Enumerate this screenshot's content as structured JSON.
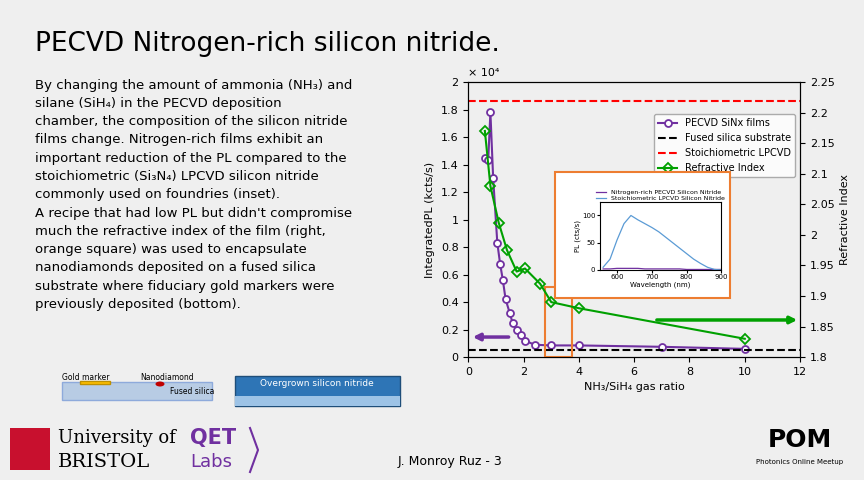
{
  "slide": {
    "title": "PECVD Nitrogen-rich silicon nitride.",
    "paragraphs": [
      [
        "By changing the amount of ammonia (NH₃) and",
        "silane (SiH₄) in the PECVD deposition",
        "chamber, the composition of the silicon nitride",
        "films change. Nitrogen-rich films exhibit an",
        "important reduction of the PL compared to the",
        "stoichiometric (Si₃N₄) LPCVD silicon nitride",
        "commonly used on foundries (inset)."
      ],
      [
        "A recipe that had low PL but didn't compromise",
        "much the refractive index of the film (right,",
        "orange square) was used to encapsulate",
        "nanodiamonds deposited on a fused silica",
        "substrate where fiduciary gold markers were",
        "previously deposited (bottom)."
      ]
    ],
    "diagram": {
      "left": [
        "Gold marker",
        "Nanodiamond",
        "Fused silica"
      ],
      "right": [
        "Overgrown silicon nitride"
      ]
    },
    "footer": {
      "university": [
        "University of",
        "BRISTOL"
      ],
      "lab": [
        "QET",
        "Labs"
      ],
      "author": "J. Monroy Ruz - 3",
      "meetup": [
        "POM",
        "Photonics Online Meetup"
      ]
    }
  },
  "chart_data": [
    {
      "type": "line",
      "x_label": "NH₃/SiH₄ gas ratio",
      "y_label": "IntegratedPL (kcts/s)",
      "y_offset_text": "× 10⁴",
      "y2_label": "Refractive Index",
      "xlim": [
        0,
        12
      ],
      "xticks": [
        0,
        2,
        4,
        6,
        8,
        10,
        12
      ],
      "ylim": [
        0,
        2
      ],
      "yticks": [
        0,
        0.2,
        0.4,
        0.6,
        0.8,
        1,
        1.2,
        1.4,
        1.6,
        1.8,
        2
      ],
      "y2lim": [
        1.8,
        2.25
      ],
      "y2ticks": [
        1.8,
        1.85,
        1.9,
        1.95,
        2,
        2.05,
        2.1,
        2.15,
        2.2,
        2.25
      ],
      "legend": "upper right",
      "series": [
        {
          "name": "PECVD SiNx films",
          "color": "#7030a0",
          "marker": "o",
          "line_style": "solid",
          "x": [
            0.6,
            0.72,
            0.8,
            0.9,
            1.05,
            1.15,
            1.25,
            1.35,
            1.5,
            1.6,
            1.75,
            1.9,
            2.05,
            2.4,
            3,
            4,
            7,
            10
          ],
          "values": [
            1.45,
            1.43,
            1.78,
            1.3,
            0.83,
            0.68,
            0.56,
            0.42,
            0.32,
            0.25,
            0.2,
            0.16,
            0.12,
            0.09,
            0.085,
            0.085,
            0.075,
            0.06
          ]
        },
        {
          "name": "Fused silica substrate",
          "color": "#000000",
          "line_style": "dashed",
          "x": [
            0,
            12
          ],
          "values": [
            0.05,
            0.05
          ]
        },
        {
          "name": "Stoichiometric LPCVD",
          "color": "#ff0000",
          "line_style": "dashed",
          "x": [
            0,
            12
          ],
          "values": [
            1.86,
            1.86
          ]
        },
        {
          "name": "Refractive Index",
          "color": "#00a000",
          "marker": "D",
          "line_style": "solid",
          "axis": "y2",
          "x": [
            0.6,
            0.8,
            1.1,
            1.4,
            1.75,
            2.05,
            2.6,
            3,
            4,
            10
          ],
          "values": [
            2.17,
            2.08,
            2.02,
            1.975,
            1.94,
            1.945,
            1.92,
            1.89,
            1.88,
            1.83
          ]
        }
      ]
    },
    {
      "type": "line",
      "x_label": "Wavelength (nm)",
      "y_label": "PL (cts/s)",
      "xlim": [
        550,
        900
      ],
      "xticks": [
        600,
        700,
        800,
        900
      ],
      "ylim": [
        0,
        125
      ],
      "yticks": [
        0,
        50,
        100
      ],
      "legend": "upper center",
      "x": [
        560,
        580,
        600,
        620,
        640,
        660,
        680,
        700,
        720,
        740,
        760,
        780,
        800,
        820,
        840,
        860,
        880,
        900
      ],
      "series": [
        {
          "name": "Nitrogen-rich PECVD Silicon Nitride",
          "color": "#7030a0",
          "line_style": "solid",
          "values": [
            2,
            2,
            3,
            3,
            3,
            3,
            2,
            2,
            2,
            2,
            2,
            2,
            1,
            1,
            1,
            1,
            1,
            1
          ]
        },
        {
          "name": "Stoichiometric LPCVD Silicon Nitride",
          "color": "#5b9bd5",
          "line_style": "solid",
          "values": [
            5,
            20,
            55,
            85,
            100,
            92,
            85,
            78,
            70,
            60,
            50,
            40,
            30,
            20,
            12,
            5,
            1,
            0
          ]
        }
      ]
    }
  ]
}
